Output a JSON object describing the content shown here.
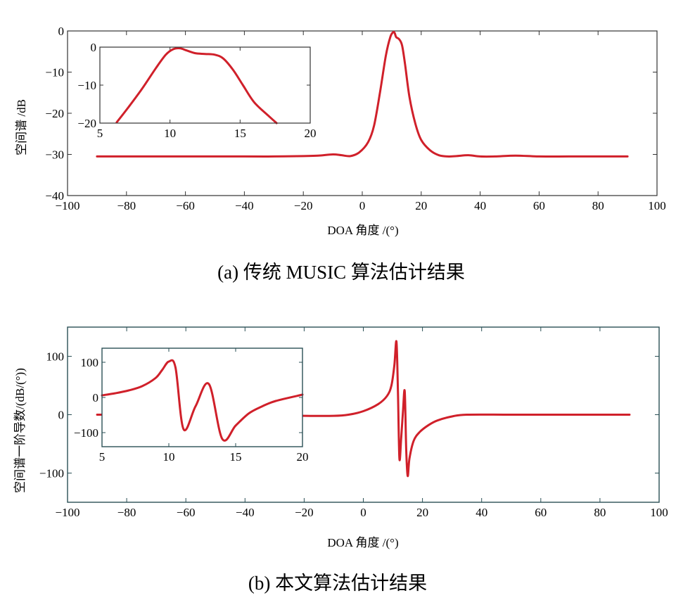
{
  "chart_data": [
    {
      "type": "line",
      "title": "",
      "xlabel": "DOA 角度 /(°)",
      "ylabel": "空间谱 /dB",
      "caption": "(a) 传统 MUSIC 算法估计结果",
      "xlim": [
        -100,
        100
      ],
      "ylim": [
        -40,
        0
      ],
      "xticks": [
        -100,
        -80,
        -60,
        -40,
        -20,
        0,
        20,
        40,
        60,
        80,
        100
      ],
      "yticks": [
        0,
        -10,
        -20,
        -30,
        -40
      ],
      "grid": false,
      "series": [
        {
          "x": [
            -90,
            -80,
            -60,
            -40,
            -30,
            -20,
            -15,
            -10,
            -7,
            -4,
            -1,
            2,
            4,
            6,
            8,
            9.5,
            10.5,
            11,
            11.5,
            12.5,
            13.5,
            14.5,
            16,
            18,
            20,
            23,
            26,
            29,
            32,
            36,
            40,
            45,
            52,
            60,
            70,
            80,
            90
          ],
          "y": [
            -30.5,
            -30.5,
            -30.5,
            -30.5,
            -30.5,
            -30.4,
            -30.3,
            -30.0,
            -30.2,
            -30.4,
            -29.5,
            -27.0,
            -23.0,
            -15.0,
            -6.0,
            -1.5,
            -0.3,
            -0.5,
            -1.5,
            -2.0,
            -3.5,
            -8.0,
            -16.0,
            -22.5,
            -26.5,
            -29.0,
            -30.2,
            -30.5,
            -30.4,
            -30.2,
            -30.5,
            -30.5,
            -30.3,
            -30.5,
            -30.5,
            -30.5,
            -30.5
          ]
        }
      ],
      "inset": {
        "xlim": [
          5,
          20
        ],
        "ylim": [
          -20,
          0
        ],
        "xticks": [
          5,
          10,
          15,
          20
        ],
        "yticks": [
          0,
          -10,
          -20
        ],
        "series": [
          {
            "x": [
              6.2,
              7,
              8,
              9,
              9.7,
              10.2,
              10.7,
              11.2,
              11.8,
              12.5,
              13.2,
              13.8,
              14.5,
              15.2,
              16,
              17,
              17.6
            ],
            "y": [
              -19.8,
              -16.0,
              -11.0,
              -5.5,
              -2.0,
              -0.6,
              -0.3,
              -0.9,
              -1.6,
              -1.8,
              -2.0,
              -3.0,
              -6.0,
              -10.0,
              -14.5,
              -18.0,
              -20.0
            ]
          }
        ]
      }
    },
    {
      "type": "line",
      "title": "",
      "xlabel": "DOA 角度 /(°)",
      "ylabel": "空间谱一阶导数/(dB/(°))",
      "caption": "(b) 本文算法估计结果",
      "xlim": [
        -100,
        100
      ],
      "ylim": [
        -150,
        150
      ],
      "xticks": [
        -100,
        -80,
        -60,
        -40,
        -20,
        0,
        20,
        40,
        60,
        80,
        100
      ],
      "yticks": [
        100,
        0,
        -100
      ],
      "grid": false,
      "series": [
        {
          "x": [
            -90,
            -80,
            -60,
            -40,
            -20,
            -10,
            -5,
            0,
            5,
            8,
            9.5,
            10.5,
            11.2,
            11.7,
            12.2,
            12.8,
            13.4,
            14.0,
            14.5,
            15.0,
            15.6,
            17,
            19,
            22,
            25,
            30,
            35,
            50,
            70,
            90
          ],
          "y": [
            0,
            0,
            0,
            -1,
            -2,
            -2,
            0,
            6,
            18,
            32,
            50,
            85,
            125,
            40,
            -75,
            -40,
            5,
            40,
            -60,
            -105,
            -75,
            -45,
            -30,
            -18,
            -10,
            -3,
            0,
            0,
            0,
            0
          ]
        }
      ],
      "inset": {
        "xlim": [
          5,
          20
        ],
        "ylim": [
          -140,
          140
        ],
        "xticks": [
          5,
          10,
          15,
          20
        ],
        "yticks": [
          100,
          0,
          -100
        ],
        "series": [
          {
            "x": [
              5,
              6,
              7,
              8,
              9,
              9.5,
              10,
              10.5,
              11.1,
              12,
              13,
              14,
              15,
              16,
              17,
              18,
              20
            ],
            "y": [
              6,
              12,
              20,
              32,
              55,
              78,
              102,
              85,
              -90,
              -25,
              38,
              -118,
              -80,
              -45,
              -25,
              -10,
              8
            ]
          }
        ]
      }
    }
  ]
}
